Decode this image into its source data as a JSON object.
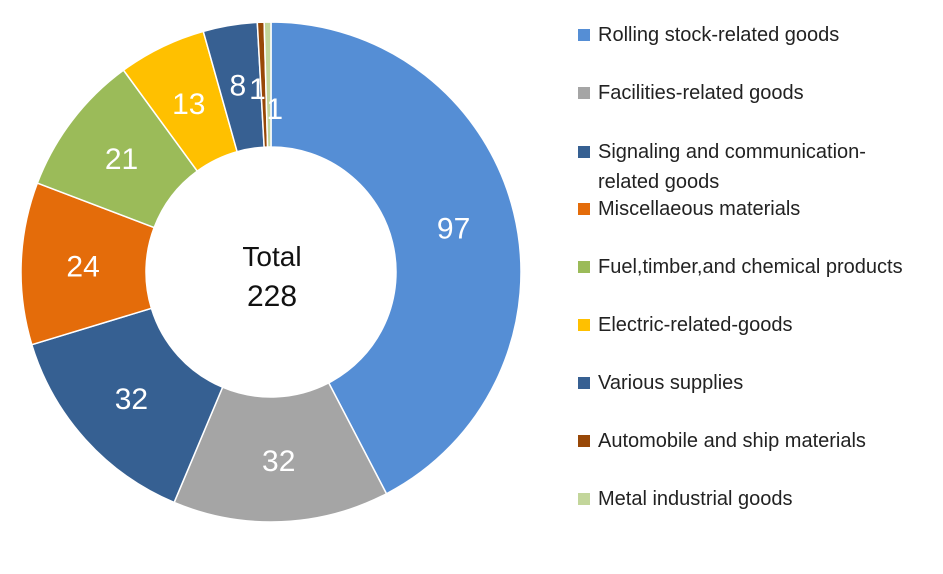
{
  "chart_data": {
    "type": "pie",
    "donut": true,
    "center_label": {
      "title": "Total",
      "value": "228"
    },
    "legend_position": "right",
    "slices": [
      {
        "label": "Rolling stock-related goods",
        "value": 97,
        "color": "#558ED5"
      },
      {
        "label": "Facilities-related goods",
        "value": 32,
        "color": "#A5A5A5"
      },
      {
        "label": "Signaling and communication-related goods",
        "value": 32,
        "color": "#366092"
      },
      {
        "label": "Miscellaeous materials",
        "value": 24,
        "color": "#E46C0A"
      },
      {
        "label": "Fuel,timber,and chemical products",
        "value": 21,
        "color": "#9BBB59"
      },
      {
        "label": "Electric-related-goods",
        "value": 13,
        "color": "#FFC000"
      },
      {
        "label": "Various supplies",
        "value": 8,
        "color": "#376092"
      },
      {
        "label": "Automobile and ship materials",
        "value": 1,
        "color": "#984807"
      },
      {
        "label": "Metal industrial goods",
        "value": 1,
        "color": "#C3D69B"
      }
    ]
  }
}
